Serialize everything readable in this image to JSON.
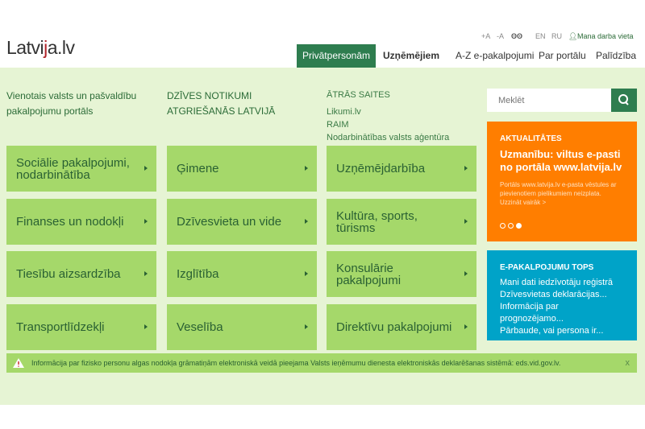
{
  "header": {
    "logo": "Latvija.lv",
    "util": [
      "+A",
      "-A",
      "EN",
      "RU"
    ],
    "my_workplace": "Mana darba vieta",
    "nav": [
      "Privātpersonām",
      "Uzņēmējiem",
      "A-Z e-pakalpojumi",
      "Par portālu",
      "Palīdzība"
    ]
  },
  "intro": {
    "col1": "Vienotais valsts un pašvaldību pakalpojumu portāls",
    "col2": "DZĪVES NOTIKUMI ATGRIEŠANĀS LATVIJĀ",
    "col3_title": "ĀTRĀS SAITES",
    "links": [
      "Likumi.lv",
      "RAIM",
      "Nodarbinātības valsts aģentūra"
    ]
  },
  "tiles": [
    "Sociālie pakalpojumi, nodarbinātība",
    "Ģimene",
    "Uzņēmējdarbība",
    "Finanses un nodokļi",
    "Dzīvesvieta un vide",
    "Kultūra, sports, tūrisms",
    "Tiesību aizsardzība",
    "Izglītība",
    "Konsulārie pakalpojumi",
    "Transportlīdzekļi",
    "Veselība",
    "Direktīvu pakalpojumi"
  ],
  "search": {
    "placeholder": "Meklēt"
  },
  "news": {
    "heading": "AKTUALITĀTES",
    "title": "Uzmanību: viltus e-pasti no portāla www.latvija.lv",
    "desc": "Portāls www.latvija.lv e-pasta vēstules ar pievienotiem pielikumiem neizplata. Uzzināt vairāk >",
    "slides": 3,
    "active_slide": 3
  },
  "tops": {
    "heading": "E-PAKALPOJUMU TOPS",
    "items": [
      "Mani dati iedzīvotāju reģistrā",
      "Dzīvesvietas deklarācijas...",
      "Informācija par prognozējamo...",
      "Pārbaude, vai persona ir..."
    ]
  },
  "notice": {
    "text": "Informācija par fizisko personu algas nodokļa grāmatiņām elektroniskā veidā pieejama Valsts ieņēmumu dienesta elektroniskās deklarēšanas sistēmā: eds.vid.gov.lv.",
    "close": "x"
  },
  "colors": {
    "primary": "#2e7d4f",
    "tile": "#a5d86a",
    "news": "#ff7e00",
    "tops": "#00a3c8"
  }
}
